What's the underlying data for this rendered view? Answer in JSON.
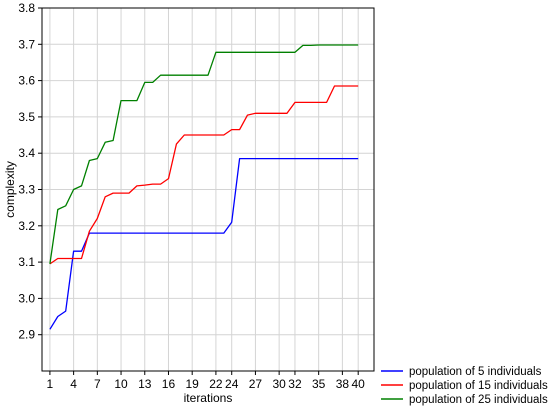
{
  "chart_data": {
    "type": "line",
    "title": "",
    "xlabel": "iterations",
    "ylabel": "complexity",
    "xlim": [
      0,
      42
    ],
    "ylim": [
      2.8,
      3.8
    ],
    "x_ticks": [
      1,
      4,
      7,
      10,
      13,
      16,
      19,
      22,
      24,
      27,
      30,
      32,
      35,
      38,
      40
    ],
    "y_ticks": [
      2.9,
      3.0,
      3.1,
      3.2,
      3.3,
      3.4,
      3.5,
      3.6,
      3.7,
      3.8
    ],
    "y_tick_labels": [
      "2.9",
      "3.0",
      "3.1",
      "3.2",
      "3.3",
      "3.4",
      "3.5",
      "3.6",
      "3.7",
      "3.8"
    ],
    "grid": true,
    "legend_position": "bottom-right, outside plot",
    "series": [
      {
        "name": "population of 5 individuals",
        "color": "#0000ff",
        "points": [
          [
            1,
            2.915
          ],
          [
            2,
            2.95
          ],
          [
            3,
            2.965
          ],
          [
            4,
            3.13
          ],
          [
            5,
            3.13
          ],
          [
            6,
            3.18
          ],
          [
            7,
            3.18
          ],
          [
            8,
            3.18
          ],
          [
            9,
            3.18
          ],
          [
            10,
            3.18
          ],
          [
            11,
            3.18
          ],
          [
            12,
            3.18
          ],
          [
            13,
            3.18
          ],
          [
            14,
            3.18
          ],
          [
            15,
            3.18
          ],
          [
            16,
            3.18
          ],
          [
            17,
            3.18
          ],
          [
            18,
            3.18
          ],
          [
            19,
            3.18
          ],
          [
            20,
            3.18
          ],
          [
            21,
            3.18
          ],
          [
            22,
            3.18
          ],
          [
            23,
            3.18
          ],
          [
            24,
            3.21
          ],
          [
            25,
            3.385
          ],
          [
            26,
            3.385
          ],
          [
            27,
            3.385
          ],
          [
            28,
            3.385
          ],
          [
            29,
            3.385
          ],
          [
            30,
            3.385
          ],
          [
            31,
            3.385
          ],
          [
            32,
            3.385
          ],
          [
            33,
            3.385
          ],
          [
            34,
            3.385
          ],
          [
            35,
            3.385
          ],
          [
            36,
            3.385
          ],
          [
            37,
            3.385
          ],
          [
            38,
            3.385
          ],
          [
            39,
            3.385
          ],
          [
            40,
            3.385
          ]
        ]
      },
      {
        "name": "population of 15 individuals",
        "color": "#ff0000",
        "points": [
          [
            1,
            3.095
          ],
          [
            2,
            3.11
          ],
          [
            3,
            3.11
          ],
          [
            4,
            3.11
          ],
          [
            5,
            3.11
          ],
          [
            6,
            3.185
          ],
          [
            7,
            3.22
          ],
          [
            8,
            3.28
          ],
          [
            9,
            3.29
          ],
          [
            10,
            3.29
          ],
          [
            11,
            3.29
          ],
          [
            12,
            3.31
          ],
          [
            13,
            3.312
          ],
          [
            14,
            3.315
          ],
          [
            15,
            3.315
          ],
          [
            16,
            3.33
          ],
          [
            17,
            3.425
          ],
          [
            18,
            3.45
          ],
          [
            19,
            3.45
          ],
          [
            20,
            3.45
          ],
          [
            21,
            3.45
          ],
          [
            22,
            3.45
          ],
          [
            23,
            3.45
          ],
          [
            24,
            3.465
          ],
          [
            25,
            3.465
          ],
          [
            26,
            3.505
          ],
          [
            27,
            3.51
          ],
          [
            28,
            3.51
          ],
          [
            29,
            3.51
          ],
          [
            30,
            3.51
          ],
          [
            31,
            3.51
          ],
          [
            32,
            3.54
          ],
          [
            33,
            3.54
          ],
          [
            34,
            3.54
          ],
          [
            35,
            3.54
          ],
          [
            36,
            3.54
          ],
          [
            37,
            3.585
          ],
          [
            38,
            3.585
          ],
          [
            39,
            3.585
          ],
          [
            40,
            3.585
          ]
        ]
      },
      {
        "name": "population of 25 individuals",
        "color": "#008000",
        "points": [
          [
            1,
            3.095
          ],
          [
            2,
            3.245
          ],
          [
            3,
            3.255
          ],
          [
            4,
            3.3
          ],
          [
            5,
            3.31
          ],
          [
            6,
            3.38
          ],
          [
            7,
            3.385
          ],
          [
            8,
            3.43
          ],
          [
            9,
            3.435
          ],
          [
            10,
            3.545
          ],
          [
            11,
            3.545
          ],
          [
            12,
            3.545
          ],
          [
            13,
            3.595
          ],
          [
            14,
            3.595
          ],
          [
            15,
            3.615
          ],
          [
            16,
            3.615
          ],
          [
            17,
            3.615
          ],
          [
            18,
            3.615
          ],
          [
            19,
            3.615
          ],
          [
            20,
            3.615
          ],
          [
            21,
            3.615
          ],
          [
            22,
            3.678
          ],
          [
            23,
            3.678
          ],
          [
            24,
            3.678
          ],
          [
            25,
            3.678
          ],
          [
            26,
            3.678
          ],
          [
            27,
            3.678
          ],
          [
            28,
            3.678
          ],
          [
            29,
            3.678
          ],
          [
            30,
            3.678
          ],
          [
            31,
            3.678
          ],
          [
            32,
            3.678
          ],
          [
            33,
            3.697
          ],
          [
            34,
            3.697
          ],
          [
            35,
            3.698
          ],
          [
            36,
            3.698
          ],
          [
            37,
            3.698
          ],
          [
            38,
            3.698
          ],
          [
            39,
            3.698
          ],
          [
            40,
            3.698
          ]
        ]
      }
    ]
  }
}
